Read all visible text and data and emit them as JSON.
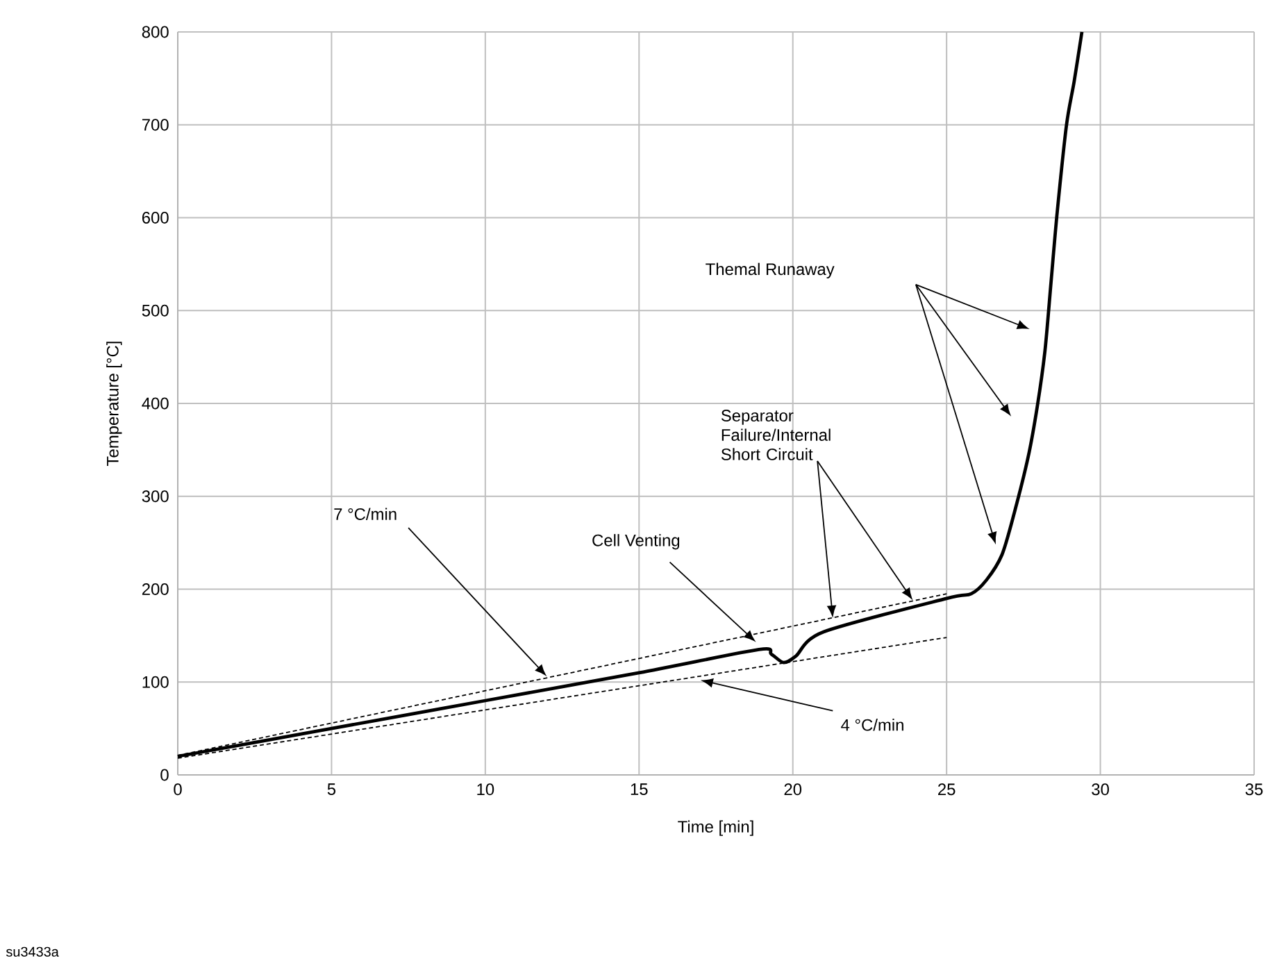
{
  "chart_data": {
    "type": "line",
    "xlabel": "Time [min]",
    "ylabel": "Temperature [°C]",
    "xlim": [
      0,
      35
    ],
    "xticks": [
      0,
      5,
      10,
      15,
      20,
      25,
      30,
      35
    ],
    "ylim": [
      0,
      800
    ],
    "yticks": [
      0,
      100,
      200,
      300,
      400,
      500,
      600,
      700,
      800
    ],
    "grid": true,
    "marker": "none",
    "series": [
      {
        "color": "#000000",
        "line_style": "solid",
        "x": [
          0,
          5,
          10,
          15,
          18.9,
          19.3,
          19.7,
          20.1,
          21.0,
          25.0,
          25.8,
          26.3,
          26.8,
          27.2,
          27.65,
          27.95,
          28.2,
          28.4,
          28.6,
          28.9,
          29.15,
          29.4
        ],
        "values": [
          20,
          50,
          80,
          110,
          135,
          130,
          121,
          128,
          154,
          190,
          195,
          210,
          237,
          282,
          342,
          397,
          457,
          532,
          607,
          700,
          747,
          800
        ]
      },
      {
        "color": "#000000",
        "line_style": "dashed",
        "x": [
          0,
          25
        ],
        "values": [
          21,
          195
        ]
      },
      {
        "color": "#000000",
        "line_style": "dashed",
        "x": [
          0,
          25
        ],
        "values": [
          18,
          148
        ]
      }
    ],
    "annotations": [
      "Themal Runaway",
      {
        "text": "Separator Failure/Internal Short Circuit",
        "x": 21.3,
        "y": 169
      },
      {
        "text": "Cell Venting",
        "x": 18.8,
        "y": 143
      },
      {
        "text": "7 °C/min",
        "x": 12.0,
        "y": 106
      },
      {
        "text": "4 °C/min",
        "x": 17.0,
        "y": 102
      },
      "su3433a"
    ]
  }
}
